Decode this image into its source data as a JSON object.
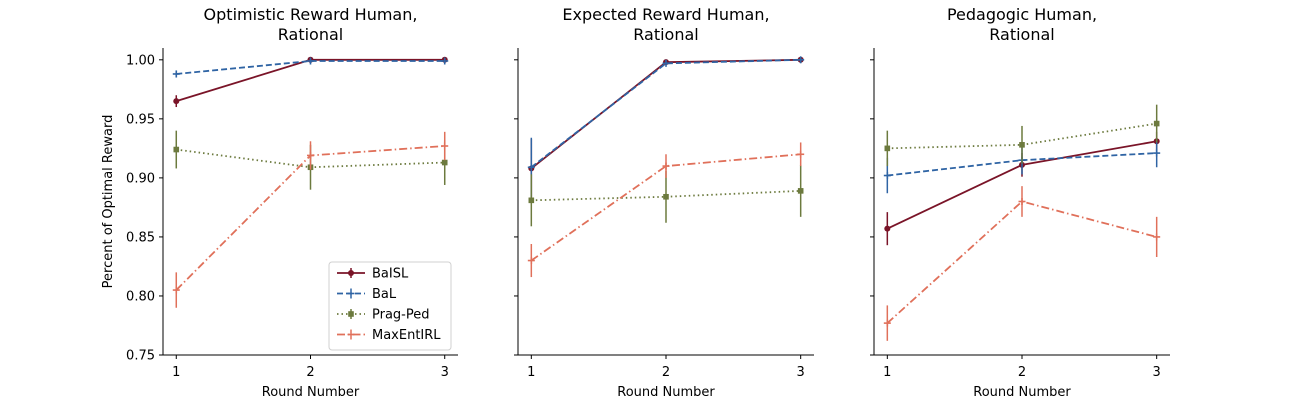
{
  "chart_data": [
    {
      "type": "line",
      "title": "Optimistic Reward Human,\nRational",
      "xlabel": "Round Number",
      "ylabel": "Percent of Optimal Reward",
      "x": [
        1,
        2,
        3
      ],
      "xticks": [
        "1",
        "2",
        "3"
      ],
      "ylim": [
        0.75,
        1.01
      ],
      "yticks": [
        "0.75",
        "0.80",
        "0.85",
        "0.90",
        "0.95",
        "1.00"
      ],
      "show_yticklabels": true,
      "legend": "lower-right",
      "series": [
        {
          "name": "BaISL",
          "values": [
            0.965,
            1.0,
            1.0
          ],
          "errors": [
            0.005,
            0.001,
            0.001
          ]
        },
        {
          "name": "BaL",
          "values": [
            0.988,
            0.999,
            0.999
          ],
          "errors": [
            0.003,
            0.001,
            0.001
          ]
        },
        {
          "name": "Prag-Ped",
          "values": [
            0.924,
            0.909,
            0.913
          ],
          "errors": [
            0.016,
            0.019,
            0.019
          ]
        },
        {
          "name": "MaxEntIRL",
          "values": [
            0.805,
            0.919,
            0.927
          ],
          "errors": [
            0.015,
            0.012,
            0.012
          ]
        }
      ]
    },
    {
      "type": "line",
      "title": "Expected Reward Human,\nRational",
      "xlabel": "Round Number",
      "ylabel": "",
      "x": [
        1,
        2,
        3
      ],
      "xticks": [
        "1",
        "2",
        "3"
      ],
      "ylim": [
        0.75,
        1.01
      ],
      "yticks": [
        "0.75",
        "0.80",
        "0.85",
        "0.90",
        "0.95",
        "1.00"
      ],
      "show_yticklabels": false,
      "series": [
        {
          "name": "BaISL",
          "values": [
            0.908,
            0.998,
            1.0
          ],
          "errors": [
            0.025,
            0.001,
            0.001
          ]
        },
        {
          "name": "BaL",
          "values": [
            0.909,
            0.997,
            1.0
          ],
          "errors": [
            0.025,
            0.001,
            0.001
          ]
        },
        {
          "name": "Prag-Ped",
          "values": [
            0.881,
            0.884,
            0.889
          ],
          "errors": [
            0.022,
            0.022,
            0.022
          ]
        },
        {
          "name": "MaxEntIRL",
          "values": [
            0.83,
            0.91,
            0.92
          ],
          "errors": [
            0.014,
            0.01,
            0.01
          ]
        }
      ]
    },
    {
      "type": "line",
      "title": "Pedagogic Human,\nRational",
      "xlabel": "Round Number",
      "ylabel": "",
      "x": [
        1,
        2,
        3
      ],
      "xticks": [
        "1",
        "2",
        "3"
      ],
      "ylim": [
        0.75,
        1.01
      ],
      "yticks": [
        "0.75",
        "0.80",
        "0.85",
        "0.90",
        "0.95",
        "1.00"
      ],
      "show_yticklabels": false,
      "series": [
        {
          "name": "BaISL",
          "values": [
            0.857,
            0.911,
            0.931
          ],
          "errors": [
            0.014,
            0.01,
            0.008
          ]
        },
        {
          "name": "BaL",
          "values": [
            0.902,
            0.915,
            0.921
          ],
          "errors": [
            0.015,
            0.012,
            0.012
          ]
        },
        {
          "name": "Prag-Ped",
          "values": [
            0.925,
            0.928,
            0.946
          ],
          "errors": [
            0.015,
            0.016,
            0.016
          ]
        },
        {
          "name": "MaxEntIRL",
          "values": [
            0.777,
            0.88,
            0.85
          ],
          "errors": [
            0.015,
            0.013,
            0.017
          ]
        }
      ]
    }
  ],
  "series_styles": [
    {
      "name": "BaISL",
      "color": "#7a1428",
      "dash": "",
      "marker": "circle"
    },
    {
      "name": "BaL",
      "color": "#2f64a4",
      "dash": "6,3",
      "marker": "plus"
    },
    {
      "name": "Prag-Ped",
      "color": "#6c7a3e",
      "dash": "1.5,3",
      "marker": "square"
    },
    {
      "name": "MaxEntIRL",
      "color": "#e0705a",
      "dash": "8,3,1.5,3",
      "marker": "plus"
    }
  ]
}
